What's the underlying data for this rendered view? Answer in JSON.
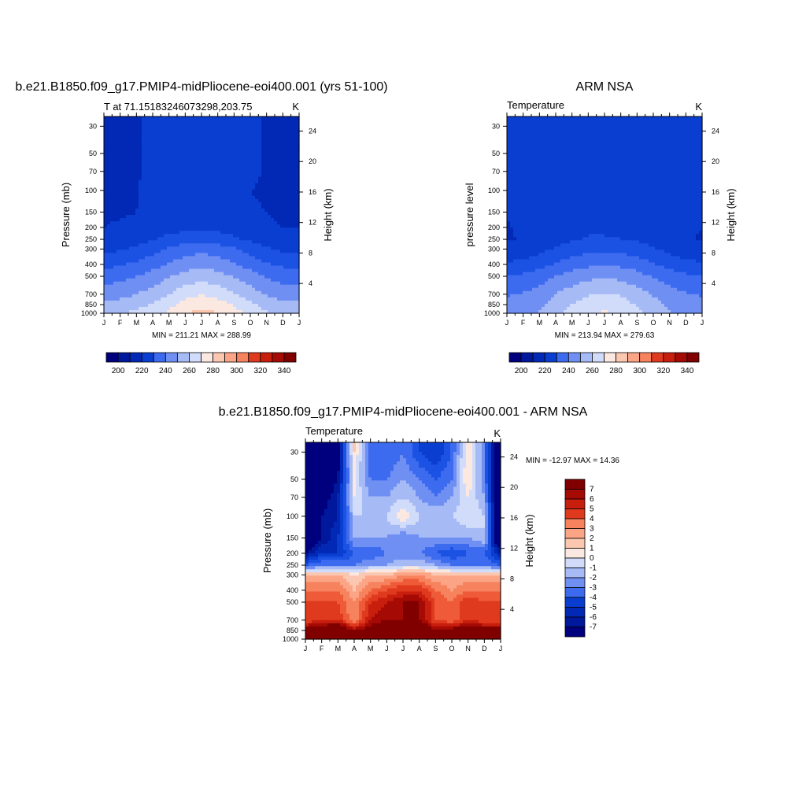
{
  "palette": [
    "#00007f",
    "#00189c",
    "#0229b5",
    "#0a3ed0",
    "#1b52e3",
    "#3d6bef",
    "#6f8ff3",
    "#a6baf6",
    "#d1dcfa",
    "#fbe9e1",
    "#fcc7b0",
    "#fba586",
    "#f7825e",
    "#ef5b39",
    "#e03a1e",
    "#c81e0d",
    "#a50a04",
    "#800000"
  ],
  "top_left": {
    "title": "b.e21.B1850.f09_g17.PMIP4-midPliocene-eoi400.001 (yrs 51-100)",
    "subtitle_left": "T at 71.15183246073298,203.75",
    "subtitle_right": "K",
    "ylabel": "Pressure (mb)",
    "ylabel_right": "Height (km)",
    "minmax": "MIN = 211.21 MAX = 288.99",
    "colorbar_labels": [
      "200",
      "220",
      "240",
      "260",
      "280",
      "300",
      "320",
      "340"
    ]
  },
  "top_right": {
    "title": "ARM NSA",
    "subtitle_left": "Temperature",
    "subtitle_right": "K",
    "ylabel": "pressure level",
    "ylabel_right": "Height (km)",
    "minmax": "MIN = 213.94 MAX = 279.63",
    "colorbar_labels": [
      "200",
      "220",
      "240",
      "260",
      "280",
      "300",
      "320",
      "340"
    ]
  },
  "bottom": {
    "title": "b.e21.B1850.f09_g17.PMIP4-midPliocene-eoi400.001 - ARM NSA",
    "subtitle_left": "Temperature",
    "subtitle_right": "K",
    "ylabel": "Pressure (mb)",
    "ylabel_right": "Height (km)",
    "minmax": "MIN = -12.97 MAX =  14.36",
    "colorbar_labels": [
      "7",
      "6",
      "5",
      "4",
      "3",
      "2",
      "1",
      "0",
      "-1",
      "-2",
      "-3",
      "-4",
      "-5",
      "-6",
      "-7"
    ]
  },
  "axes": {
    "x_ticks": [
      "J",
      "F",
      "M",
      "A",
      "M",
      "J",
      "J",
      "A",
      "S",
      "O",
      "N",
      "D",
      "J"
    ],
    "pressure_ticks": [
      "30",
      "50",
      "70",
      "100",
      "150",
      "200",
      "250",
      "300",
      "400",
      "500",
      "700",
      "850",
      "1000"
    ],
    "height_ticks": [
      "24",
      "20",
      "16",
      "12",
      "8",
      "4"
    ]
  },
  "chart_data": [
    {
      "type": "heatmap",
      "title": "b.e21.B1850.f09_g17.PMIP4-midPliocene-eoi400.001 (yrs 51-100)",
      "subtitle": "T at 71.15183246073298,203.75",
      "units": "K",
      "x": [
        "J",
        "F",
        "M",
        "A",
        "M",
        "J",
        "J",
        "A",
        "S",
        "O",
        "N",
        "D",
        "J"
      ],
      "y": [
        1000,
        850,
        700,
        500,
        400,
        300,
        250,
        200,
        150,
        100,
        70,
        50,
        30
      ],
      "ylabel": "Pressure (mb)",
      "levels": [
        195,
        205,
        215,
        225,
        235,
        245,
        255,
        265,
        275,
        285,
        295,
        305,
        315,
        325,
        335,
        345
      ],
      "min": 211.21,
      "max": 288.99,
      "z": [
        [
          262,
          264,
          267,
          271,
          277,
          284,
          288,
          285,
          279,
          272,
          266,
          263,
          262
        ],
        [
          257,
          259,
          262,
          266,
          272,
          279,
          283,
          280,
          274,
          267,
          261,
          258,
          257
        ],
        [
          250,
          252,
          255,
          259,
          265,
          271,
          274,
          271,
          266,
          260,
          254,
          251,
          250
        ],
        [
          240,
          242,
          245,
          249,
          254,
          259,
          261,
          259,
          254,
          249,
          244,
          241,
          240
        ],
        [
          232,
          234,
          237,
          241,
          246,
          250,
          252,
          250,
          246,
          241,
          236,
          233,
          232
        ],
        [
          222,
          224,
          227,
          231,
          236,
          240,
          242,
          240,
          236,
          231,
          226,
          223,
          222
        ],
        [
          218,
          219,
          221,
          224,
          228,
          231,
          232,
          230,
          227,
          223,
          220,
          218,
          218
        ],
        [
          215,
          216,
          217,
          219,
          221,
          222,
          222,
          222,
          220,
          217,
          216,
          215,
          215
        ],
        [
          214,
          214,
          215,
          219,
          221,
          222,
          222,
          221,
          220,
          216,
          215,
          214,
          214
        ],
        [
          213,
          213,
          214,
          219,
          221,
          222,
          222,
          221,
          221,
          215,
          214,
          213,
          213
        ],
        [
          213,
          213,
          214,
          218,
          220,
          221,
          221,
          221,
          220,
          217,
          214,
          213,
          213
        ],
        [
          213,
          213,
          214,
          218,
          219,
          220,
          220,
          220,
          219,
          217,
          214,
          213,
          213
        ],
        [
          213,
          213,
          214,
          218,
          219,
          220,
          220,
          220,
          219,
          217,
          214,
          213,
          213
        ]
      ]
    },
    {
      "type": "heatmap",
      "title": "ARM NSA",
      "subtitle": "Temperature",
      "units": "K",
      "x": [
        "J",
        "F",
        "M",
        "A",
        "M",
        "J",
        "J",
        "A",
        "S",
        "O",
        "N",
        "D",
        "J"
      ],
      "y": [
        1000,
        850,
        700,
        500,
        400,
        300,
        250,
        200,
        150,
        100,
        70,
        50,
        30
      ],
      "ylabel": "pressure level",
      "levels": [
        195,
        205,
        215,
        225,
        235,
        245,
        255,
        265,
        275,
        285,
        295,
        305,
        315,
        325,
        335,
        345
      ],
      "min": 213.94,
      "max": 279.63,
      "z": [
        [
          250,
          252,
          256,
          263,
          268,
          273,
          276,
          273,
          267,
          262,
          256,
          252,
          250
        ],
        [
          248,
          250,
          253,
          260,
          265,
          270,
          273,
          270,
          264,
          259,
          253,
          250,
          248
        ],
        [
          244,
          246,
          249,
          255,
          260,
          264,
          266,
          264,
          259,
          254,
          249,
          246,
          244
        ],
        [
          235,
          237,
          240,
          245,
          249,
          252,
          254,
          252,
          249,
          244,
          240,
          237,
          235
        ],
        [
          226,
          228,
          231,
          236,
          240,
          243,
          245,
          243,
          240,
          236,
          231,
          228,
          226
        ],
        [
          218,
          219,
          222,
          226,
          229,
          232,
          233,
          232,
          229,
          226,
          222,
          219,
          218
        ],
        [
          214,
          216,
          219,
          222,
          224,
          226,
          226,
          225,
          224,
          222,
          219,
          216,
          214
        ],
        [
          214,
          217,
          221,
          222,
          223,
          223,
          223,
          223,
          222,
          222,
          221,
          218,
          215
        ],
        [
          216,
          218,
          221,
          222,
          223,
          223,
          223,
          223,
          222,
          222,
          221,
          218,
          216
        ],
        [
          218,
          219,
          221,
          222,
          223,
          223,
          223,
          223,
          222,
          222,
          221,
          217,
          217
        ],
        [
          219,
          220,
          221,
          222,
          223,
          223,
          223,
          223,
          222,
          222,
          220,
          216,
          217
        ],
        [
          220,
          220,
          221,
          222,
          223,
          223,
          223,
          223,
          222,
          222,
          220,
          216,
          218
        ],
        [
          220,
          220,
          221,
          222,
          223,
          223,
          223,
          223,
          222,
          222,
          220,
          216,
          218
        ]
      ]
    },
    {
      "type": "heatmap",
      "title": "b.e21.B1850.f09_g17.PMIP4-midPliocene-eoi400.001 - ARM NSA",
      "subtitle": "Temperature",
      "units": "K",
      "x": [
        "J",
        "F",
        "M",
        "A",
        "M",
        "J",
        "J",
        "A",
        "S",
        "O",
        "N",
        "D",
        "J"
      ],
      "y": [
        1000,
        850,
        700,
        500,
        400,
        300,
        250,
        200,
        150,
        100,
        70,
        50,
        30
      ],
      "ylabel": "Pressure (mb)",
      "levels": [
        -8,
        -7,
        -6,
        -5,
        -4,
        -3,
        -2,
        -1,
        0,
        1,
        2,
        3,
        4,
        5,
        6,
        7,
        8
      ],
      "min": -12.97,
      "max": 14.36,
      "z": [
        [
          12,
          12,
          12,
          11,
          12,
          12,
          12,
          12,
          10,
          12,
          12,
          11,
          12
        ],
        [
          9,
          10,
          11,
          8,
          9,
          11,
          11,
          11,
          8,
          9,
          10,
          9,
          9
        ],
        [
          5,
          6,
          6,
          3,
          7,
          8,
          8,
          8,
          5,
          4,
          6,
          5,
          5
        ],
        [
          5,
          5,
          5,
          3,
          6,
          7,
          8,
          8,
          5,
          4,
          6,
          5,
          5
        ],
        [
          4,
          4,
          4,
          2,
          4,
          5,
          6,
          6,
          4,
          3,
          4,
          4,
          4
        ],
        [
          2,
          2,
          2,
          1,
          2,
          2,
          3,
          3,
          2,
          2,
          2,
          2,
          2
        ],
        [
          -4,
          -3,
          -3,
          -3,
          -2,
          -2,
          -1,
          -1,
          -2,
          -3,
          -3,
          -3,
          -4
        ],
        [
          -8,
          -6,
          -6,
          -4,
          -4,
          -3,
          -3,
          -3,
          -4,
          -5,
          -4,
          -4,
          -7
        ],
        [
          -12,
          -8,
          -6,
          -2,
          -2,
          -2,
          -3,
          -2,
          -2,
          -2,
          -2,
          -1,
          -12
        ],
        [
          -12,
          -8,
          -7,
          -1,
          -1,
          -1,
          1,
          -1,
          -1,
          -1,
          0,
          -1,
          -12
        ],
        [
          -12,
          -9,
          -7,
          0,
          -2,
          -2,
          -1,
          -2,
          -3,
          -2,
          0,
          -2,
          -12
        ],
        [
          -12,
          -10,
          -8,
          0,
          -3,
          -3,
          -2,
          -3,
          -4,
          -3,
          1,
          -3,
          -12
        ],
        [
          -12,
          -10,
          -9,
          1,
          -4,
          -4,
          -3,
          -5,
          -6,
          -4,
          1,
          -3,
          -12
        ]
      ]
    }
  ]
}
